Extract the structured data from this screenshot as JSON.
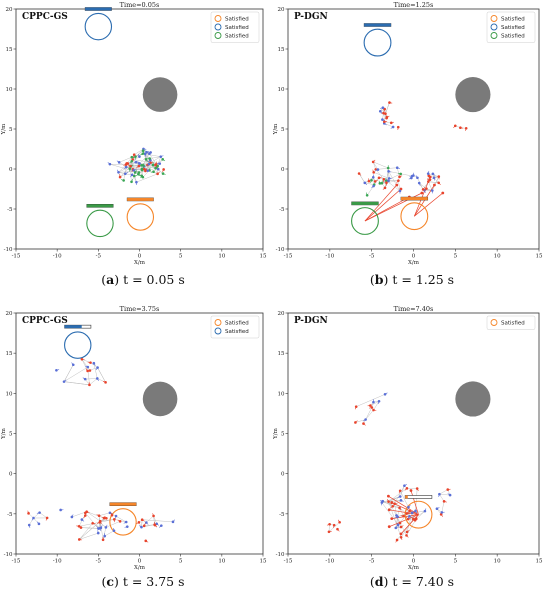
{
  "figure": {
    "captions": [
      {
        "letter": "a",
        "text": "t = 0.05 s"
      },
      {
        "letter": "b",
        "text": "t = 1.25 s"
      },
      {
        "letter": "c",
        "text": "t = 3.75 s"
      },
      {
        "letter": "d",
        "text": "t = 7.40 s"
      }
    ]
  },
  "colors": {
    "agent_red": "#e8432c",
    "agent_blue": "#5a6fd6",
    "agent_green": "#3aa655",
    "edge": "#b9b9b9",
    "obstacle": "#7a7a7a",
    "goal_orange": "#f5862a",
    "goal_blue": "#2b6cb0",
    "goal_green": "#3a9a47"
  },
  "chart_data": [
    {
      "type": "scatter",
      "panel": "a",
      "tag": "CPPC-GS",
      "title": "Time=0.05s",
      "xlabel": "X/m",
      "ylabel": "Y/m",
      "xlim": [
        -15,
        15
      ],
      "ylim": [
        -10,
        20
      ],
      "xticks": [
        -15,
        -10,
        -5,
        0,
        5,
        10,
        15
      ],
      "yticks": [
        -10,
        -5,
        0,
        5,
        10,
        15,
        20
      ],
      "grid": false,
      "legend_position": "top-right",
      "legend": [
        {
          "label": "Satisfied",
          "color": "#f5862a"
        },
        {
          "label": "Satisfied",
          "color": "#2b6cb0"
        },
        {
          "label": "Satisfied",
          "color": "#3a9a47"
        }
      ],
      "obstacle": {
        "x": 2.5,
        "y": 9.3,
        "r": 2.1
      },
      "goals": [
        {
          "x": 0.1,
          "y": -6.0,
          "r": 1.6,
          "color": "#f5862a",
          "bar": {
            "x": 0.1,
            "y": -3.8,
            "fill": 1.0,
            "color": "#f5862a"
          }
        },
        {
          "x": -4.8,
          "y": -6.8,
          "r": 1.6,
          "color": "#3a9a47",
          "bar": {
            "x": -4.8,
            "y": -4.6,
            "fill": 1.0,
            "color": "#3a9a47"
          }
        },
        {
          "x": -5.0,
          "y": 17.8,
          "r": 1.6,
          "color": "#2b6cb0",
          "bar": {
            "x": -5.0,
            "y": 20.0,
            "fill": 1.0,
            "color": "#2b6cb0"
          }
        }
      ],
      "clusters": [
        {
          "cx": 0.2,
          "cy": 0.4,
          "sx": 2.4,
          "sy": 1.9,
          "n": 70,
          "seed": 11,
          "edges": 150,
          "colors": [
            "#e8432c",
            "#5a6fd6",
            "#3aa655"
          ]
        }
      ],
      "spokes": []
    },
    {
      "type": "scatter",
      "panel": "b",
      "tag": "P-DGN",
      "title": "Time=1.25s",
      "xlabel": "X/m",
      "ylabel": "Y/m",
      "xlim": [
        -15,
        15
      ],
      "ylim": [
        -10,
        20
      ],
      "xticks": [
        -15,
        -10,
        -5,
        0,
        5,
        10,
        15
      ],
      "yticks": [
        -10,
        -5,
        0,
        5,
        10,
        15,
        20
      ],
      "grid": false,
      "legend_position": "top-right",
      "legend": [
        {
          "label": "Satisfied",
          "color": "#f5862a"
        },
        {
          "label": "Satisfied",
          "color": "#2b6cb0"
        },
        {
          "label": "Satisfied",
          "color": "#3a9a47"
        }
      ],
      "obstacle": {
        "x": 7.1,
        "y": 9.3,
        "r": 2.1
      },
      "goals": [
        {
          "x": 0.1,
          "y": -5.9,
          "r": 1.6,
          "color": "#f5862a",
          "bar": {
            "x": 0.1,
            "y": -3.7,
            "fill": 1.0,
            "color": "#f5862a"
          }
        },
        {
          "x": -5.8,
          "y": -6.5,
          "r": 1.6,
          "color": "#3a9a47",
          "bar": {
            "x": -5.8,
            "y": -4.3,
            "fill": 1.0,
            "color": "#3a9a47"
          }
        },
        {
          "x": -4.3,
          "y": 15.8,
          "r": 1.6,
          "color": "#2b6cb0",
          "bar": {
            "x": -4.3,
            "y": 18.0,
            "fill": 1.0,
            "color": "#2b6cb0"
          }
        }
      ],
      "clusters": [
        {
          "cx": -3.5,
          "cy": -1.0,
          "sx": 2.3,
          "sy": 1.8,
          "n": 30,
          "seed": 21,
          "edges": 55,
          "colors": [
            "#e8432c",
            "#5a6fd6",
            "#3aa655"
          ]
        },
        {
          "cx": 1.5,
          "cy": -1.3,
          "sx": 1.6,
          "sy": 1.3,
          "n": 16,
          "seed": 22,
          "edges": 28,
          "colors": [
            "#e8432c",
            "#5a6fd6"
          ]
        },
        {
          "cx": -3.0,
          "cy": 6.6,
          "sx": 1.2,
          "sy": 1.4,
          "n": 14,
          "seed": 23,
          "edges": 24,
          "colors": [
            "#e8432c",
            "#5a6fd6"
          ]
        },
        {
          "cx": 5.5,
          "cy": 5.4,
          "sx": 0.8,
          "sy": 0.5,
          "n": 3,
          "seed": 24,
          "edges": 2,
          "colors": [
            "#e8432c"
          ]
        }
      ],
      "spokes": [
        {
          "to_x": -5.8,
          "to_y": -6.5,
          "from": [
            [
              -1.5,
              -2.5
            ],
            [
              -0.5,
              -3.5
            ],
            [
              1.0,
              -3.0
            ],
            [
              -2.0,
              -2.0
            ]
          ],
          "color": "#e8432c"
        },
        {
          "to_x": 0.1,
          "to_y": -5.9,
          "from": [
            [
              2.5,
              -2.0
            ],
            [
              3.5,
              -3.0
            ],
            [
              2.0,
              -1.0
            ]
          ],
          "color": "#e8432c"
        }
      ]
    },
    {
      "type": "scatter",
      "panel": "c",
      "tag": "CPPC-GS",
      "title": "Time=3.75s",
      "xlabel": "X/m",
      "ylabel": "Y/m",
      "xlim": [
        -15,
        15
      ],
      "ylim": [
        -10,
        20
      ],
      "xticks": [
        -15,
        -10,
        -5,
        0,
        5,
        10,
        15
      ],
      "yticks": [
        -10,
        -5,
        0,
        5,
        10,
        15,
        20
      ],
      "grid": false,
      "legend_position": "top-right",
      "legend": [
        {
          "label": "Satisfied",
          "color": "#f5862a"
        },
        {
          "label": "Satisfied",
          "color": "#2b6cb0"
        }
      ],
      "obstacle": {
        "x": 2.5,
        "y": 9.3,
        "r": 2.1
      },
      "goals": [
        {
          "x": -2.0,
          "y": -6.0,
          "r": 1.6,
          "color": "#f5862a",
          "bar": {
            "x": -2.0,
            "y": -3.8,
            "fill": 1.0,
            "color": "#f5862a"
          }
        },
        {
          "x": -7.5,
          "y": 16.0,
          "r": 1.6,
          "color": "#2b6cb0",
          "bar": {
            "x": -7.5,
            "y": 18.3,
            "fill": 0.65,
            "color": "#2b6cb0"
          }
        }
      ],
      "clusters": [
        {
          "cx": -7.0,
          "cy": 12.5,
          "sx": 2.4,
          "sy": 2.0,
          "n": 14,
          "seed": 31,
          "edges": 18,
          "colors": [
            "#e8432c",
            "#5a6fd6"
          ]
        },
        {
          "cx": -5.0,
          "cy": -6.0,
          "sx": 3.6,
          "sy": 1.8,
          "n": 30,
          "seed": 32,
          "edges": 40,
          "colors": [
            "#e8432c",
            "#5a6fd6"
          ]
        },
        {
          "cx": 2.0,
          "cy": -6.2,
          "sx": 1.8,
          "sy": 1.6,
          "n": 12,
          "seed": 33,
          "edges": 16,
          "colors": [
            "#e8432c",
            "#5a6fd6"
          ]
        },
        {
          "cx": -12.3,
          "cy": -5.5,
          "sx": 1.2,
          "sy": 1.6,
          "n": 6,
          "seed": 34,
          "edges": 6,
          "colors": [
            "#e8432c",
            "#5a6fd6"
          ]
        }
      ],
      "spokes": []
    },
    {
      "type": "scatter",
      "panel": "d",
      "tag": "P-DGN",
      "title": "Time=7.40s",
      "xlabel": "X/m",
      "ylabel": "Y/m",
      "xlim": [
        -15,
        15
      ],
      "ylim": [
        -10,
        20
      ],
      "xticks": [
        -15,
        -10,
        -5,
        0,
        5,
        10,
        15
      ],
      "yticks": [
        -10,
        -5,
        0,
        5,
        10,
        15,
        20
      ],
      "grid": false,
      "legend_position": "top-right",
      "legend": [
        {
          "label": "Satisfied",
          "color": "#f5862a"
        }
      ],
      "obstacle": {
        "x": 7.1,
        "y": 9.3,
        "r": 2.1
      },
      "goals": [
        {
          "x": 0.6,
          "y": -5.1,
          "r": 1.6,
          "color": "#f5862a",
          "bar": {
            "x": 0.6,
            "y": -2.9,
            "fill": 0.1,
            "color": "#f5862a"
          }
        }
      ],
      "clusters": [
        {
          "cx": -1.3,
          "cy": -4.6,
          "sx": 2.2,
          "sy": 2.7,
          "n": 34,
          "seed": 41,
          "edges": 60,
          "colors": [
            "#e8432c",
            "#5a6fd6"
          ]
        },
        {
          "cx": -5.8,
          "cy": 8.6,
          "sx": 1.7,
          "sy": 2.2,
          "n": 10,
          "seed": 42,
          "edges": 12,
          "colors": [
            "#e8432c",
            "#5a6fd6"
          ]
        },
        {
          "cx": -8.8,
          "cy": -6.5,
          "sx": 1.4,
          "sy": 1.5,
          "n": 5,
          "seed": 43,
          "edges": 3,
          "colors": [
            "#e8432c"
          ]
        },
        {
          "cx": 3.7,
          "cy": -3.5,
          "sx": 1.3,
          "sy": 1.8,
          "n": 7,
          "seed": 44,
          "edges": 8,
          "colors": [
            "#e8432c",
            "#5a6fd6"
          ]
        }
      ],
      "spokes": [
        {
          "to_x": 0.6,
          "to_y": -5.1,
          "from": [
            [
              -3.0,
              -2.8
            ],
            [
              -2.6,
              -3.6
            ],
            [
              -2.9,
              -4.5
            ],
            [
              -2.6,
              -5.6
            ],
            [
              -2.9,
              -6.6
            ],
            [
              -1.5,
              -7.5
            ],
            [
              -0.3,
              -2.1
            ]
          ],
          "color": "#e8432c"
        }
      ]
    }
  ]
}
